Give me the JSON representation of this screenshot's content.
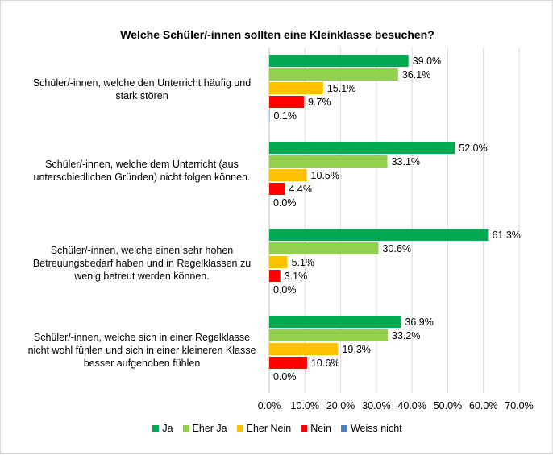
{
  "chart_data": {
    "type": "bar",
    "orientation": "horizontal",
    "title": "Welche Schüler/-innen sollten eine Kleinklasse besuchen?",
    "categories": [
      "Schüler/-innen, welche den Unterricht häufig und stark stören",
      "Schüler/-innen, welche dem Unterricht (aus unterschiedlichen Gründen) nicht folgen können.",
      "Schüler/-innen, welche einen sehr hohen Betreuungsbedarf haben und in Regelklassen zu wenig betreut werden können.",
      "Schüler/-innen, welche sich in einer Regelklasse nicht wohl fühlen und sich in einer kleineren Klasse besser aufgehoben fühlen"
    ],
    "series": [
      {
        "name": "Ja",
        "color": "#00a850",
        "values": [
          39.0,
          52.0,
          61.3,
          36.9
        ],
        "labels": [
          "39.0%",
          "52.0%",
          "61.3%",
          "36.9%"
        ]
      },
      {
        "name": "Eher Ja",
        "color": "#92d050",
        "values": [
          36.1,
          33.1,
          30.6,
          33.2
        ],
        "labels": [
          "36.1%",
          "33.1%",
          "30.6%",
          "33.2%"
        ]
      },
      {
        "name": "Eher Nein",
        "color": "#ffc000",
        "values": [
          15.1,
          10.5,
          5.1,
          19.3
        ],
        "labels": [
          "15.1%",
          "10.5%",
          "5.1%",
          "19.3%"
        ]
      },
      {
        "name": "Nein",
        "color": "#ff0000",
        "values": [
          9.7,
          4.4,
          3.1,
          10.6
        ],
        "labels": [
          "9.7%",
          "4.4%",
          "3.1%",
          "10.6%"
        ]
      },
      {
        "name": "Weiss nicht",
        "color": "#4f81bd",
        "values": [
          0.1,
          0.0,
          0.0,
          0.0
        ],
        "labels": [
          "0.1%",
          "0.0%",
          "0.0%",
          "0.0%"
        ]
      }
    ],
    "xlim": [
      0,
      70
    ],
    "xticks": [
      "0.0%",
      "10.0%",
      "20.0%",
      "30.0%",
      "40.0%",
      "50.0%",
      "60.0%",
      "70.0%"
    ],
    "xlabel": "",
    "ylabel": "",
    "grid": true,
    "legend_position": "bottom"
  }
}
